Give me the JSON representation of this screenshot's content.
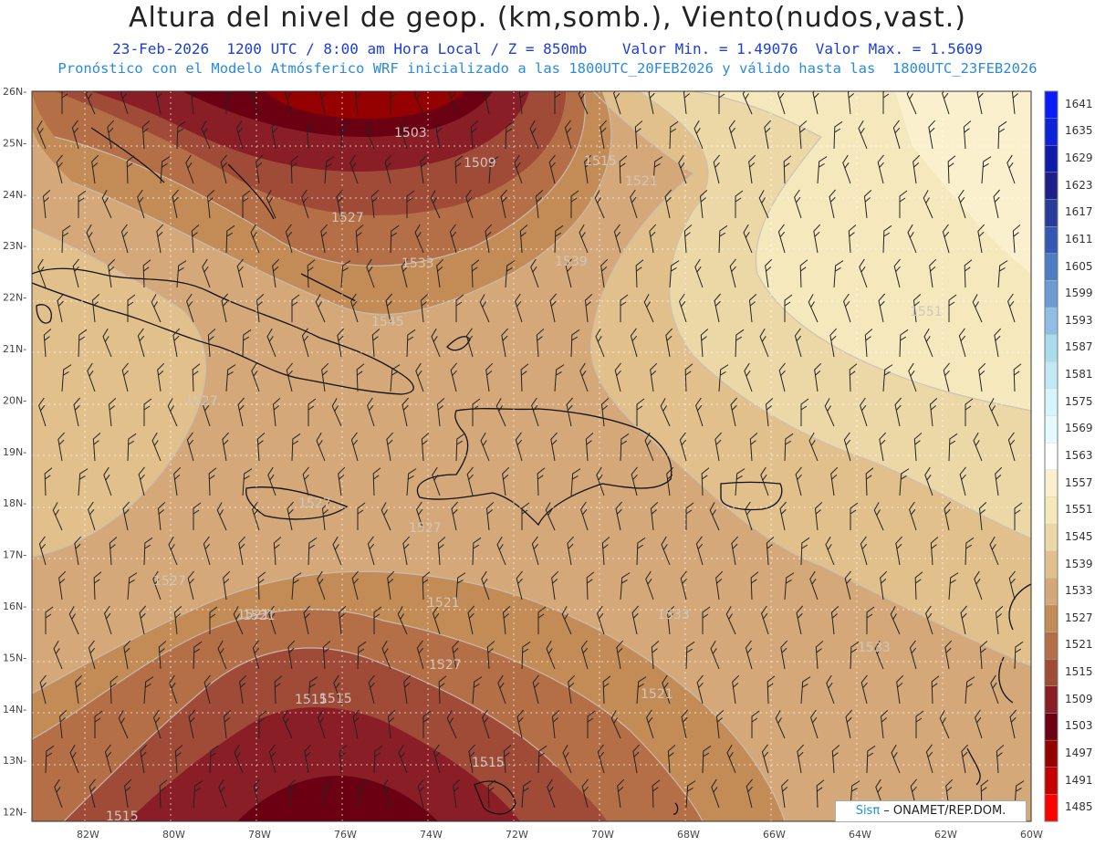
{
  "header": {
    "title": "Altura del nivel de geop. (km,somb.), Viento(nudos,vast.)",
    "line1": "23-Feb-2026  1200 UTC / 8:00 am Hora Local / Z = 850mb    Valor Min. = 1.49076  Valor Max. = 1.5609",
    "line2": "Pronóstico con el Modelo Atmósferico WRF inicializado a las 1800UTC_20FEB2026 y válido hasta las  1800UTC_23FEB2026"
  },
  "axes": {
    "lat_labels": [
      "26N",
      "25N",
      "24N",
      "23N",
      "22N",
      "21N",
      "20N",
      "19N",
      "18N",
      "17N",
      "16N",
      "15N",
      "14N",
      "13N",
      "12N"
    ],
    "lon_labels": [
      "82W",
      "80W",
      "78W",
      "76W",
      "74W",
      "72W",
      "70W",
      "68W",
      "66W",
      "64W",
      "62W",
      "60W"
    ]
  },
  "colorbar": {
    "labels": [
      "1641",
      "1635",
      "1629",
      "1623",
      "1617",
      "1611",
      "1605",
      "1599",
      "1593",
      "1587",
      "1581",
      "1575",
      "1569",
      "1563",
      "1557",
      "1551",
      "1545",
      "1539",
      "1533",
      "1527",
      "1521",
      "1515",
      "1509",
      "1503",
      "1497",
      "1491",
      "1485"
    ],
    "colors": [
      "#0a1cf5",
      "#0f22d8",
      "#0f1aa8",
      "#1a1f8a",
      "#283b9a",
      "#3558b5",
      "#4d7cc3",
      "#6c9bd3",
      "#8fbde3",
      "#acdbee",
      "#c2eaf4",
      "#d6f4fa",
      "#e3fbfd",
      "#ffffff",
      "#faf0cd",
      "#f6e8bd",
      "#ecd7a6",
      "#e1c08c",
      "#d4a878",
      "#c38c56",
      "#b46f47",
      "#9f4b38",
      "#8a1e27",
      "#6a0012",
      "#950000",
      "#c40000",
      "#ff0000"
    ]
  },
  "contour_labels": [
    "1503",
    "1509",
    "1515",
    "1521",
    "1527",
    "1533",
    "1539",
    "1545",
    "1551",
    "1521",
    "1527",
    "1533",
    "1521",
    "1515",
    "1515",
    "1527",
    "1521",
    "1527",
    "1533",
    "1527",
    "1515",
    "1515",
    "1521",
    "1527"
  ],
  "credit": {
    "brand": "Sisπ",
    "text": " – ONAMET/REP.DOM."
  }
}
